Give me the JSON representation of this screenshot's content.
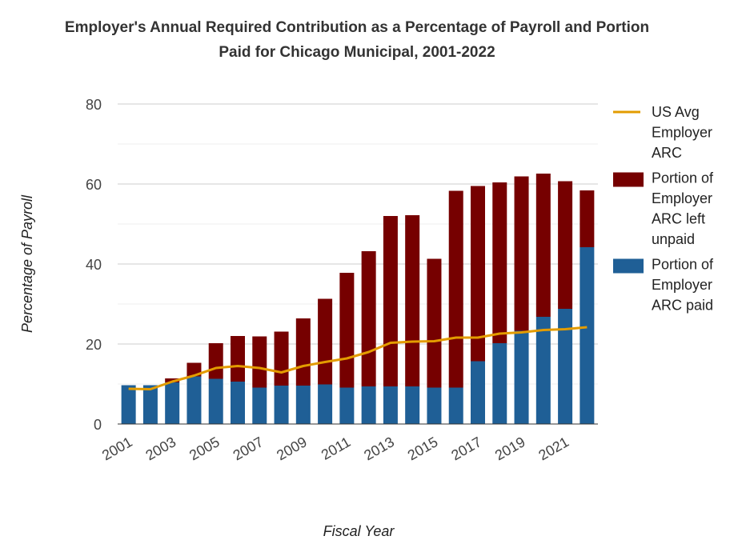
{
  "chart_data": {
    "type": "bar",
    "stacked": true,
    "title": "Employer's Annual Required Contribution as a Percentage of Payroll and Portion",
    "subtitle": "Paid for Chicago Municipal, 2001-2022",
    "xlabel": "Fiscal Year",
    "ylabel": "Percentage of Payroll",
    "ylim": [
      0,
      80
    ],
    "yticks": [
      0,
      20,
      40,
      60,
      80
    ],
    "xtick_labels": [
      "2001",
      "2003",
      "2005",
      "2007",
      "2009",
      "2011",
      "2013",
      "2015",
      "2017",
      "2019",
      "2021"
    ],
    "categories": [
      "2001",
      "2002",
      "2003",
      "2004",
      "2005",
      "2006",
      "2007",
      "2008",
      "2009",
      "2010",
      "2011",
      "2012",
      "2013",
      "2014",
      "2015",
      "2016",
      "2017",
      "2018",
      "2019",
      "2020",
      "2021",
      "2022"
    ],
    "grid": true,
    "legend_position": "right",
    "series": [
      {
        "name": "Portion of Employer ARC paid",
        "kind": "bar",
        "color": "#1f5f96",
        "values": [
          9.7,
          9.7,
          10.4,
          11.9,
          11.3,
          10.6,
          9.1,
          9.6,
          9.6,
          9.9,
          9.1,
          9.4,
          9.4,
          9.4,
          9.1,
          9.1,
          15.7,
          20.2,
          23.3,
          26.8,
          28.8,
          44.2
        ]
      },
      {
        "name": "Portion of Employer ARC left unpaid",
        "kind": "bar",
        "color": "#760000",
        "values": [
          0.0,
          0.0,
          1.0,
          3.4,
          8.9,
          11.4,
          12.8,
          13.5,
          16.8,
          21.4,
          28.7,
          33.8,
          42.6,
          42.8,
          32.2,
          49.2,
          43.8,
          40.2,
          38.6,
          35.8,
          31.9,
          14.2
        ]
      },
      {
        "name": "US Avg Employer ARC",
        "kind": "line",
        "color": "#e39c00",
        "values": [
          8.8,
          8.7,
          10.6,
          12.1,
          14.0,
          14.5,
          14.0,
          12.9,
          14.5,
          15.5,
          16.4,
          18.0,
          20.3,
          20.6,
          20.7,
          21.6,
          21.6,
          22.6,
          22.9,
          23.5,
          23.7,
          24.2
        ]
      }
    ],
    "legend_entries": [
      {
        "lines": [
          "US Avg",
          "Employer",
          "ARC"
        ],
        "color": "#e39c00",
        "symbol": "line"
      },
      {
        "lines": [
          "Portion of",
          "Employer",
          "ARC left",
          "unpaid"
        ],
        "color": "#760000",
        "symbol": "rect"
      },
      {
        "lines": [
          "Portion of",
          "Employer",
          "ARC paid"
        ],
        "color": "#1f5f96",
        "symbol": "rect"
      }
    ]
  }
}
